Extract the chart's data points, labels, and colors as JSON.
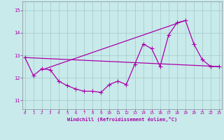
{
  "xlabel": "Windchill (Refroidissement éolien,°C)",
  "x_ticks": [
    0,
    1,
    2,
    3,
    4,
    5,
    6,
    7,
    8,
    9,
    10,
    11,
    12,
    13,
    14,
    15,
    16,
    17,
    18,
    19,
    20,
    21,
    22,
    23
  ],
  "ylim": [
    10.6,
    15.4
  ],
  "yticks": [
    11,
    12,
    13,
    14,
    15
  ],
  "xlim": [
    -0.3,
    23.3
  ],
  "background_color": "#c8eaea",
  "grid_color": "#a0c8c8",
  "line_color": "#aa00aa",
  "line1_x": [
    0,
    1,
    2,
    3,
    4,
    5,
    6,
    7,
    8,
    9,
    10,
    11,
    12,
    13,
    14,
    15,
    16,
    17,
    18,
    19,
    20,
    21,
    22,
    23
  ],
  "line1_y": [
    12.9,
    12.1,
    12.4,
    12.35,
    11.85,
    11.65,
    11.5,
    11.4,
    11.4,
    11.35,
    11.7,
    11.85,
    11.7,
    12.6,
    13.5,
    13.3,
    12.5,
    13.9,
    14.45,
    14.55,
    13.5,
    12.8,
    12.5,
    12.5
  ],
  "line2_x": [
    2,
    19
  ],
  "line2_y": [
    12.35,
    14.55
  ],
  "line3_x": [
    0,
    23
  ],
  "line3_y": [
    12.9,
    12.5
  ],
  "marker": "+",
  "marker_size": 4,
  "marker_lw": 0.8,
  "linewidth": 0.9
}
